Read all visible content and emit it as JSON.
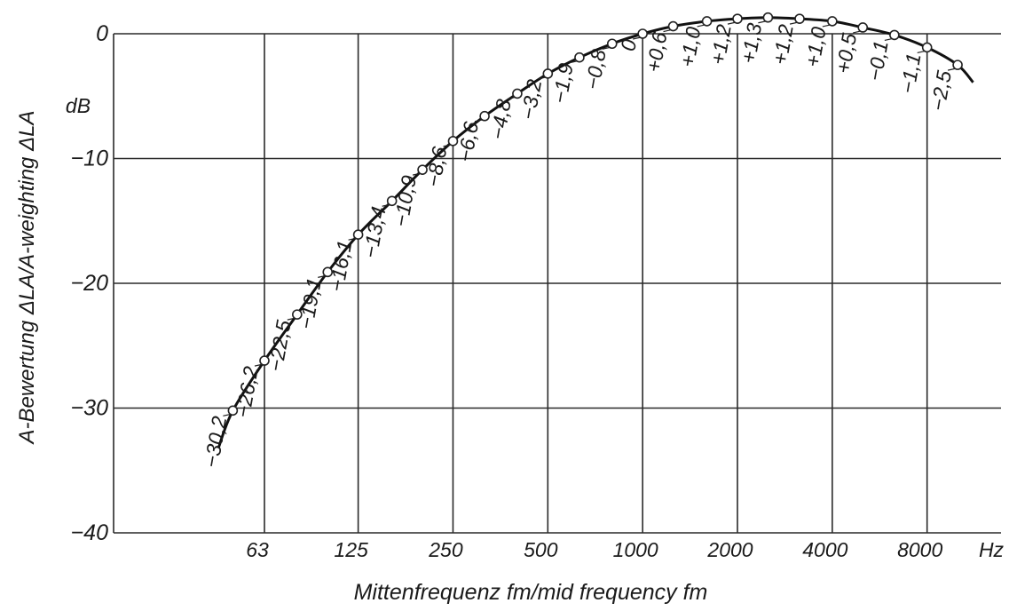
{
  "chart_data": {
    "type": "line",
    "xlabel": "Mittenfrequenz fm/mid frequency fm",
    "ylabel": "A-Bewertung ΔLA/A-weighting ΔLA",
    "y_unit": "dB",
    "x_unit": "Hz",
    "ylim": [
      -40,
      0
    ],
    "y_ticks": [
      "0",
      "-10",
      "-20",
      "-30",
      "-40"
    ],
    "x_scale": "log",
    "x_ticks": [
      "63",
      "125",
      "250",
      "500",
      "1000",
      "2000",
      "4000",
      "8000"
    ],
    "grid": true,
    "series": [
      {
        "x": [
          50,
          63,
          80,
          100,
          125,
          160,
          200,
          250,
          315,
          400,
          500,
          630,
          800,
          1000,
          1250,
          1600,
          2000,
          2500,
          3150,
          4000,
          5000,
          6300,
          8000,
          10000
        ],
        "y": [
          -30.2,
          -26.2,
          -22.5,
          -19.1,
          -16.1,
          -13.4,
          -10.9,
          -8.6,
          -6.6,
          -4.8,
          -3.2,
          -1.9,
          -0.8,
          0,
          0.6,
          1.0,
          1.2,
          1.3,
          1.2,
          1.0,
          0.5,
          -0.1,
          -1.1,
          -2.5
        ],
        "labels": [
          "−30,2",
          "−26,2",
          "−22,5",
          "−19,1",
          "−16,1",
          "−13,4",
          "−10,9",
          "−8,6",
          "−6,6",
          "−4,8",
          "−3,2",
          "−1,9",
          "−0,8",
          "0",
          "+0,6",
          "+1,0",
          "+1,2",
          "+1,3",
          "+1,2",
          "+1,0",
          "+0,5",
          "−0,1",
          "−1,1",
          "−2,5"
        ]
      }
    ]
  }
}
